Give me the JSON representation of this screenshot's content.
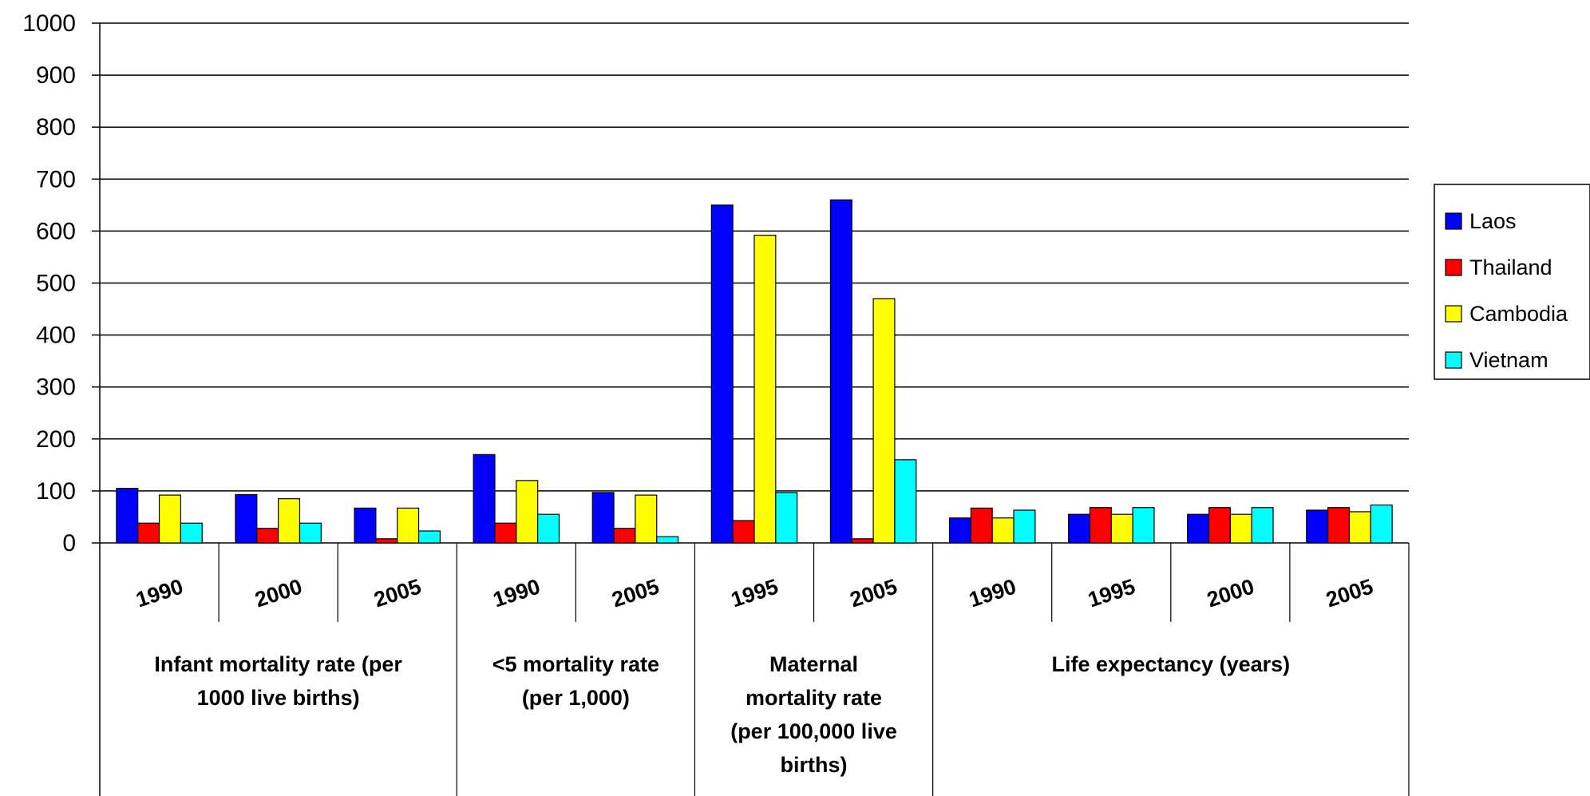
{
  "chart_data": {
    "type": "bar",
    "ylim": [
      0,
      1000
    ],
    "yticks": [
      0,
      100,
      200,
      300,
      400,
      500,
      600,
      700,
      800,
      900,
      1000
    ],
    "grid": true,
    "legend_position": "right",
    "groups": [
      {
        "label_lines": [
          "Infant mortality rate (per",
          "1000 live births)"
        ],
        "years": [
          "1990",
          "2000",
          "2005"
        ]
      },
      {
        "label_lines": [
          "<5 mortality rate",
          "(per 1,000)"
        ],
        "years": [
          "1990",
          "2005"
        ]
      },
      {
        "label_lines": [
          "Maternal",
          "mortality rate",
          "(per 100,000 live",
          "births)"
        ],
        "years": [
          "1995",
          "2005"
        ]
      },
      {
        "label_lines": [
          "Life expectancy (years)"
        ],
        "years": [
          "1990",
          "1995",
          "2000",
          "2005"
        ]
      }
    ],
    "series": [
      {
        "name": "Laos",
        "color": "#0000ff",
        "values": [
          105,
          93,
          67,
          170,
          97,
          650,
          660,
          48,
          55,
          55,
          63
        ]
      },
      {
        "name": "Thailand",
        "color": "#ff0000",
        "values": [
          38,
          28,
          8,
          38,
          28,
          43,
          8,
          67,
          68,
          68,
          68
        ]
      },
      {
        "name": "Cambodia",
        "color": "#ffff00",
        "values": [
          92,
          85,
          67,
          120,
          92,
          592,
          470,
          48,
          55,
          55,
          60
        ]
      },
      {
        "name": "Vietnam",
        "color": "#00ffff",
        "values": [
          38,
          38,
          23,
          55,
          12,
          97,
          160,
          63,
          68,
          68,
          73
        ]
      }
    ]
  }
}
